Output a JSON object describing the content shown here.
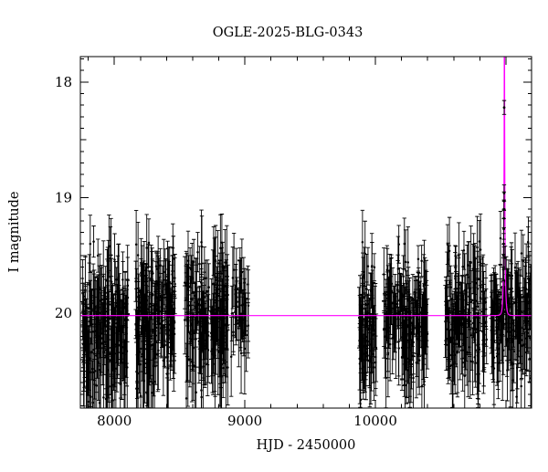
{
  "chart_data": {
    "type": "scatter",
    "title": "OGLE-2025-BLG-0343",
    "xlabel": "HJD - 2450000",
    "ylabel": "I magnitude",
    "x_range": [
      7740,
      11196
    ],
    "mag_range_top_to_bottom": [
      17.78,
      20.82
    ],
    "y_axis_inverted": true,
    "x_major_ticks": [
      8000,
      9000,
      10000
    ],
    "x_minor_step": 200,
    "y_major_ticks": [
      18,
      19,
      20
    ],
    "y_minor_step": 0.1,
    "point_color": "#000000",
    "model_color": "#ff00ff",
    "background_color": "#ffffff",
    "baseline_mag": 20.02,
    "model": {
      "type": "paczynski-microlensing",
      "t0": 10988,
      "tE": 9,
      "u0": 0.008,
      "baseline_mag": 20.02
    },
    "seasons": [
      {
        "x_start": 7755,
        "x_end": 8105,
        "n": 210,
        "mag_mean": 20.08,
        "mag_scatter": 0.27
      },
      {
        "x_start": 8161,
        "x_end": 8469,
        "n": 195,
        "mag_mean": 20.05,
        "mag_scatter": 0.26
      },
      {
        "x_start": 8538,
        "x_end": 8874,
        "n": 195,
        "mag_mean": 20.04,
        "mag_scatter": 0.27
      },
      {
        "x_start": 8895,
        "x_end": 9028,
        "n": 48,
        "mag_mean": 20.0,
        "mag_scatter": 0.18
      },
      {
        "x_start": 9874,
        "x_end": 10007,
        "n": 78,
        "mag_mean": 20.0,
        "mag_scatter": 0.3
      },
      {
        "x_start": 10063,
        "x_end": 10399,
        "n": 165,
        "mag_mean": 20.07,
        "mag_scatter": 0.26
      },
      {
        "x_start": 10532,
        "x_end": 10853,
        "n": 155,
        "mag_mean": 20.02,
        "mag_scatter": 0.27
      },
      {
        "x_start": 10881,
        "x_end": 11196,
        "n": 150,
        "mag_mean": 20.05,
        "mag_scatter": 0.27
      }
    ],
    "event_points": [
      {
        "x": 10979.5,
        "mag": 19.62,
        "err": 0.1
      },
      {
        "x": 10981.0,
        "mag": 19.5,
        "err": 0.1
      },
      {
        "x": 10982.2,
        "mag": 19.4,
        "err": 0.09
      },
      {
        "x": 10983.2,
        "mag": 19.27,
        "err": 0.09
      },
      {
        "x": 10983.9,
        "mag": 19.18,
        "err": 0.08
      },
      {
        "x": 10984.5,
        "mag": 19.1,
        "err": 0.08
      },
      {
        "x": 10985.1,
        "mag": 19.03,
        "err": 0.08
      },
      {
        "x": 10985.7,
        "mag": 18.96,
        "err": 0.07
      },
      {
        "x": 10986.2,
        "mag": 18.22,
        "err": 0.06
      },
      {
        "x": 10994.0,
        "mag": 19.52,
        "err": 0.1
      }
    ]
  }
}
